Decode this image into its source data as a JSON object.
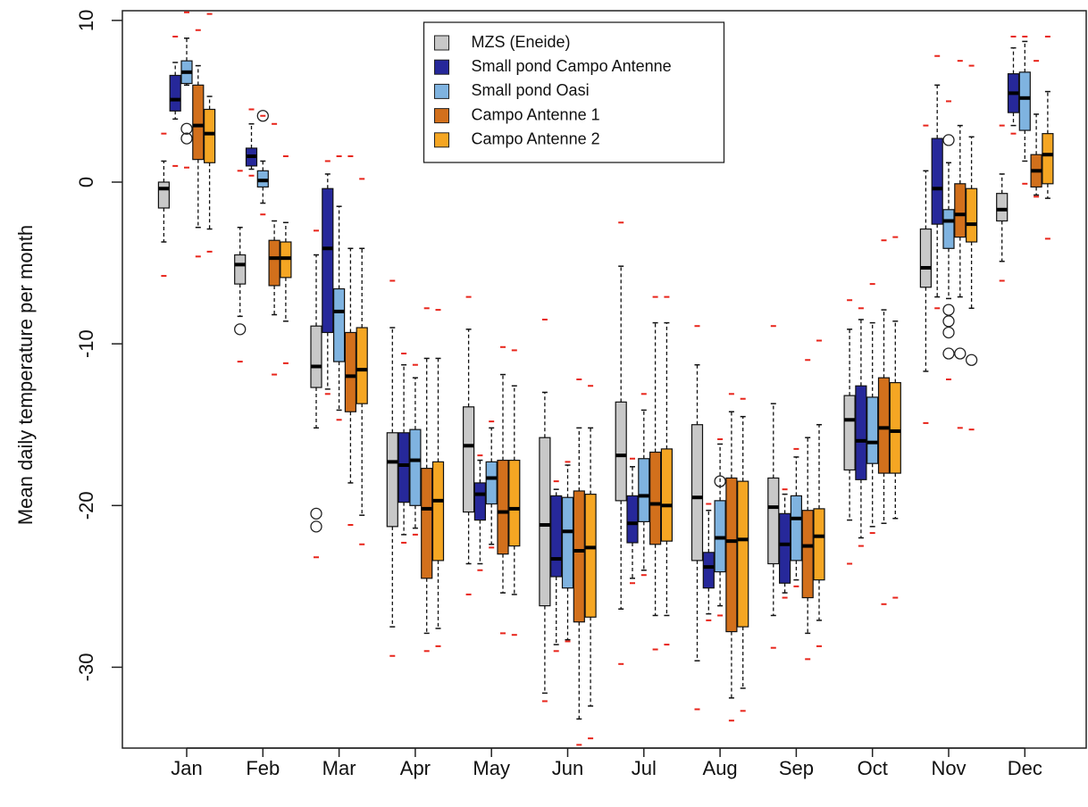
{
  "chart_data": {
    "type": "box",
    "y_label": "Mean daily temperature per month",
    "categories": [
      "Jan",
      "Feb",
      "Mar",
      "Apr",
      "May",
      "Jun",
      "Jul",
      "Aug",
      "Sep",
      "Oct",
      "Nov",
      "Dec"
    ],
    "ylim": [
      -35,
      10.6
    ],
    "yticks": [
      10,
      0,
      -10,
      -20,
      -30
    ],
    "legend": "top-center",
    "extreme_color": "#e8251b",
    "series": [
      {
        "name": "MZS (Eneide)",
        "color": "#c8c8c8",
        "whisker_low": [
          -3.7,
          -8.3,
          -15.2,
          -27.5,
          -23.6,
          -31.6,
          -26.4,
          -29.6,
          -26.8,
          -20.9,
          -11.7,
          -4.9
        ],
        "q1": [
          -1.6,
          -6.3,
          -12.7,
          -21.3,
          -20.4,
          -26.2,
          -19.7,
          -23.4,
          -23.6,
          -17.8,
          -6.5,
          -2.4
        ],
        "median": [
          -0.4,
          -5.1,
          -11.4,
          -17.3,
          -16.3,
          -21.2,
          -16.9,
          -19.5,
          -20.1,
          -14.7,
          -5.3,
          -1.7
        ],
        "q3": [
          0,
          -4.5,
          -8.9,
          -15.5,
          -13.9,
          -15.8,
          -13.6,
          -15.0,
          -18.3,
          -13.2,
          -2.9,
          -0.7
        ],
        "whisker_high": [
          1.3,
          -2.8,
          -4.5,
          -9.0,
          -9.1,
          -13.0,
          -5.2,
          -11.3,
          -13.7,
          -9.1,
          0.7,
          0.5
        ],
        "min": [
          -5.8,
          -11.1,
          -23.2,
          -29.3,
          -25.5,
          -32.1,
          -29.8,
          -32.6,
          -28.8,
          -23.6,
          -14.9,
          -6.1
        ],
        "max": [
          3.0,
          0.7,
          -3.0,
          -6.1,
          -7.1,
          -8.5,
          -2.5,
          -8.9,
          -8.9,
          -7.3,
          3.5,
          3.5
        ],
        "outliers": [
          [],
          [
            -9.1
          ],
          [
            -20.5,
            -21.3
          ],
          [],
          [],
          [],
          [],
          [],
          [],
          [],
          [],
          []
        ]
      },
      {
        "name": "Small pond Campo Antenne",
        "color": "#26289a",
        "whisker_low": [
          3.9,
          0.8,
          -12.8,
          -21.8,
          -23.6,
          -28.6,
          -24.5,
          -26.7,
          -25.4,
          -22.0,
          -7.1,
          3.5
        ],
        "q1": [
          4.4,
          1.0,
          -9.3,
          -19.8,
          -20.9,
          -24.4,
          -22.3,
          -25.1,
          -24.8,
          -18.4,
          -2.6,
          4.3
        ],
        "median": [
          5.1,
          1.6,
          -4.1,
          -17.5,
          -19.3,
          -23.3,
          -21.1,
          -23.8,
          -22.4,
          -16.0,
          -0.4,
          5.5
        ],
        "q3": [
          6.6,
          2.1,
          -0.4,
          -15.5,
          -18.6,
          -19.4,
          -19.4,
          -22.9,
          -20.5,
          -12.6,
          2.7,
          6.7
        ],
        "whisker_high": [
          7.4,
          3.6,
          0.5,
          -11.3,
          -17.2,
          -19.0,
          -17.6,
          -20.3,
          -19.3,
          -8.5,
          6.0,
          8.3
        ],
        "min": [
          1.0,
          0.4,
          -13.1,
          -22.3,
          -24.0,
          -29.0,
          -24.8,
          -27.1,
          -25.7,
          -22.5,
          -7.8,
          3.0
        ],
        "max": [
          9.0,
          4.5,
          1.3,
          -10.6,
          -16.9,
          -18.5,
          -17.1,
          -19.9,
          -19.0,
          -7.8,
          7.8,
          9.0
        ],
        "outliers": [
          [],
          [],
          [],
          [],
          [],
          [],
          [],
          [],
          [],
          [],
          [],
          []
        ]
      },
      {
        "name": "Small pond Oasi",
        "color": "#7fb3e0",
        "whisker_low": [
          6.0,
          -1.3,
          -14.1,
          -21.4,
          -22.4,
          -28.3,
          -24.0,
          -26.2,
          -24.6,
          -21.3,
          -7.2,
          1.3
        ],
        "q1": [
          6.1,
          -0.3,
          -11.1,
          -20.0,
          -19.9,
          -25.1,
          -21.0,
          -24.1,
          -23.4,
          -17.4,
          -4.1,
          3.2
        ],
        "median": [
          6.8,
          0.1,
          -8.0,
          -17.2,
          -18.3,
          -21.6,
          -19.4,
          -22.0,
          -20.8,
          -16.1,
          -2.4,
          5.2
        ],
        "q3": [
          7.5,
          0.7,
          -6.6,
          -15.3,
          -17.3,
          -19.5,
          -17.1,
          -19.7,
          -19.4,
          -13.3,
          -1.7,
          6.8
        ],
        "whisker_high": [
          8.9,
          1.3,
          -1.5,
          -12.1,
          -15.2,
          -17.5,
          -14.1,
          -16.2,
          -17.0,
          -8.7,
          1.2,
          8.7
        ],
        "min": [
          0.9,
          -2.0,
          -14.7,
          -21.8,
          -22.6,
          -28.4,
          -24.3,
          -26.8,
          -25.0,
          -21.7,
          -12.2,
          -0.1
        ],
        "max": [
          10.5,
          4.1,
          1.6,
          -11.3,
          -14.8,
          -17.3,
          -13.1,
          -15.9,
          -16.5,
          -6.3,
          5.0,
          9.0
        ],
        "outliers": [
          [
            3.3,
            2.7
          ],
          [
            4.1
          ],
          [],
          [],
          [],
          [],
          [],
          [
            -18.5
          ],
          [],
          [],
          [
            2.6,
            -7.9,
            -8.6,
            -9.3,
            -10.6
          ],
          []
        ]
      },
      {
        "name": "Campo Antenne 1",
        "color": "#d2701c",
        "whisker_low": [
          -2.8,
          -8.2,
          -18.6,
          -27.9,
          -25.4,
          -33.2,
          -26.8,
          -31.9,
          -27.9,
          -21.1,
          -7.1,
          -0.8
        ],
        "q1": [
          1.4,
          -6.4,
          -14.2,
          -24.5,
          -23.0,
          -27.2,
          -22.4,
          -27.8,
          -25.7,
          -18.0,
          -3.4,
          -0.3
        ],
        "median": [
          3.5,
          -4.7,
          -12.0,
          -20.2,
          -20.4,
          -22.8,
          -19.9,
          -22.2,
          -22.5,
          -15.2,
          -2.0,
          0.7
        ],
        "q3": [
          6.0,
          -3.6,
          -9.3,
          -17.7,
          -17.2,
          -19.1,
          -16.7,
          -18.3,
          -20.3,
          -12.1,
          -0.1,
          1.7
        ],
        "whisker_high": [
          7.2,
          -2.4,
          -4.1,
          -10.9,
          -11.9,
          -15.2,
          -8.7,
          -14.2,
          -15.8,
          -7.9,
          3.5,
          4.2
        ],
        "min": [
          -4.6,
          -11.9,
          -21.2,
          -29.0,
          -27.9,
          -34.8,
          -28.9,
          -33.3,
          -29.5,
          -26.1,
          -15.2,
          -0.9
        ],
        "max": [
          9.4,
          3.6,
          1.6,
          -7.8,
          -10.2,
          -12.2,
          -7.1,
          -13.1,
          -11.0,
          -3.6,
          7.5,
          7.5
        ],
        "outliers": [
          [],
          [],
          [],
          [],
          [],
          [],
          [],
          [],
          [],
          [],
          [
            -10.6
          ],
          []
        ]
      },
      {
        "name": "Campo Antenne 2",
        "color": "#f5a623",
        "whisker_low": [
          -2.9,
          -8.6,
          -20.6,
          -27.6,
          -25.5,
          -32.4,
          -26.8,
          -31.3,
          -27.1,
          -20.8,
          -7.8,
          -1.0
        ],
        "q1": [
          1.2,
          -5.9,
          -13.7,
          -23.4,
          -22.5,
          -26.9,
          -22.2,
          -27.5,
          -24.6,
          -18.0,
          -3.7,
          -0.1
        ],
        "median": [
          3.0,
          -4.7,
          -11.6,
          -19.7,
          -20.2,
          -22.6,
          -20.0,
          -22.1,
          -21.9,
          -15.4,
          -2.6,
          1.7
        ],
        "q3": [
          4.5,
          -3.7,
          -9.0,
          -17.3,
          -17.2,
          -19.3,
          -16.5,
          -18.5,
          -20.2,
          -12.4,
          -0.4,
          3.0
        ],
        "whisker_high": [
          5.3,
          -2.5,
          -4.1,
          -10.9,
          -12.6,
          -15.2,
          -8.7,
          -14.5,
          -15.0,
          -8.6,
          2.8,
          5.6
        ],
        "min": [
          -4.3,
          -11.2,
          -22.4,
          -28.7,
          -28.0,
          -34.4,
          -28.6,
          -32.7,
          -28.7,
          -25.7,
          -15.3,
          -3.5
        ],
        "max": [
          10.4,
          1.6,
          0.2,
          -7.9,
          -10.4,
          -12.6,
          -7.1,
          -13.4,
          -9.8,
          -3.4,
          7.2,
          9.0
        ],
        "outliers": [
          [],
          [],
          [],
          [],
          [],
          [],
          [],
          [],
          [],
          [],
          [
            -11.0
          ],
          []
        ]
      }
    ]
  }
}
